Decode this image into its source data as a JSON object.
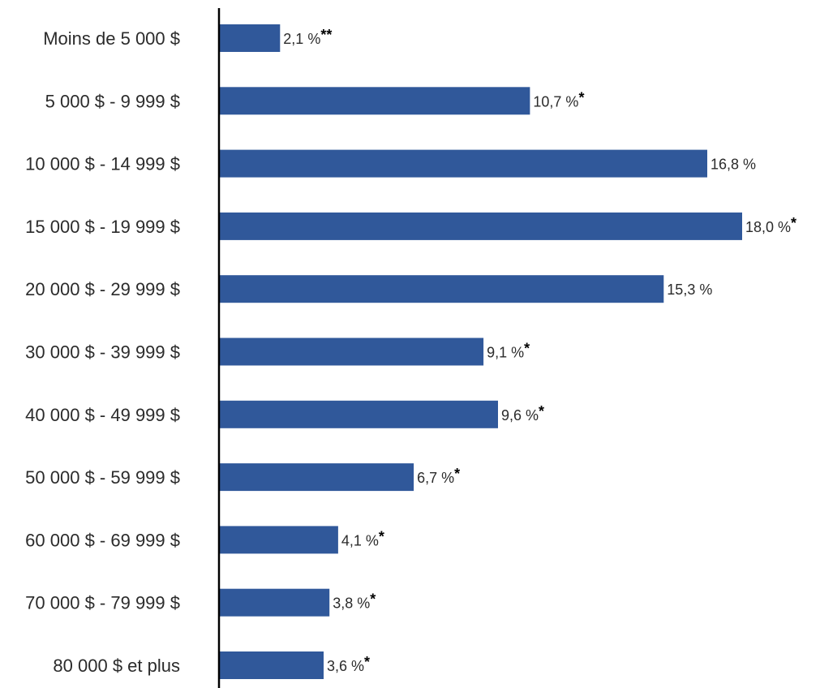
{
  "chart_data": {
    "type": "bar",
    "orientation": "horizontal",
    "categories": [
      "Moins de 5 000 $",
      "5 000 $ - 9 999 $",
      "10 000 $ - 14 999 $",
      "15 000 $ - 19 999 $",
      "20 000 $ - 29 999 $",
      "30 000 $ - 39 999 $",
      "40 000 $ - 49 999 $",
      "50 000 $ - 59 999 $",
      "60 000 $ - 69 999 $",
      "70 000 $ - 79 999 $",
      "80 000 $ et plus"
    ],
    "values": [
      2.1,
      10.7,
      16.8,
      18.0,
      15.3,
      9.1,
      9.6,
      6.7,
      4.1,
      3.8,
      3.6
    ],
    "labels": [
      "2,1 %",
      "10,7 %",
      "16,8 %",
      "18,0 %",
      "15,3 %",
      "9,1 %",
      "9,6 %",
      "6,7 %",
      "4,1 %",
      "3,8 %",
      "3,6 %"
    ],
    "markers": [
      "**",
      "*",
      "",
      "*",
      "",
      "*",
      "*",
      "*",
      "*",
      "*",
      "*"
    ],
    "xlim": [
      0,
      18.0
    ],
    "bar_color": "#30589a",
    "axis_color": "#000000",
    "grid": false,
    "legend": "none"
  }
}
